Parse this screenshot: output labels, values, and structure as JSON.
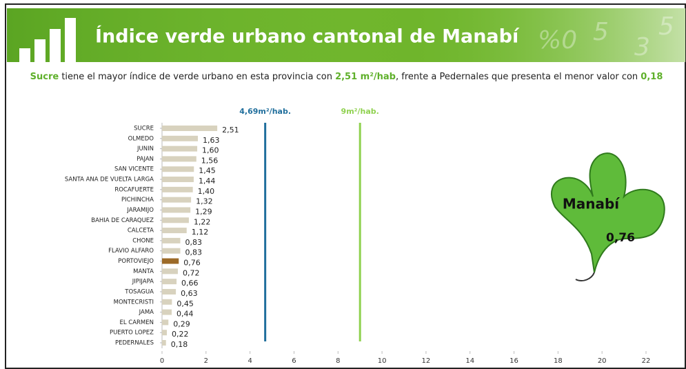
{
  "chart_data": {
    "type": "bar",
    "orientation": "horizontal",
    "title": "Índice verde urbano cantonal de Manabí",
    "subtitle": {
      "lead": "Sucre",
      "text1": " tiene el mayor índice de verde urbano en esta provincia con ",
      "highlight1": "2,51 m²/hab",
      "text2": ",  frente a Pedernales que presenta el menor valor con ",
      "highlight2": "0,18"
    },
    "categories": [
      "SUCRE",
      "OLMEDO",
      "JUNIN",
      "PAJAN",
      "SAN VICENTE",
      "SANTA ANA DE VUELTA LARGA",
      "ROCAFUERTE",
      "PICHINCHA",
      "JARAMIJO",
      "BAHIA DE CARAQUEZ",
      "CALCETA",
      "CHONE",
      "FLAVIO ALFARO",
      "PORTOVIEJO",
      "MANTA",
      "JIPIJAPA",
      "TOSAGUA",
      "MONTECRISTI",
      "JAMA",
      "EL CARMEN",
      "PUERTO LOPEZ",
      "PEDERNALES"
    ],
    "values": [
      2.51,
      1.63,
      1.6,
      1.56,
      1.45,
      1.44,
      1.4,
      1.32,
      1.29,
      1.22,
      1.12,
      0.83,
      0.83,
      0.76,
      0.72,
      0.66,
      0.63,
      0.45,
      0.44,
      0.29,
      0.22,
      0.18
    ],
    "value_labels": [
      "2,51",
      "1,63",
      "1,60",
      "1,56",
      "1,45",
      "1,44",
      "1,40",
      "1,32",
      "1,29",
      "1,22",
      "1,12",
      "0,83",
      "0,83",
      "0,76",
      "0,72",
      "0,66",
      "0,63",
      "0,45",
      "0,44",
      "0,29",
      "0,22",
      "0,18"
    ],
    "colors": [
      "#d8d2be",
      "#d8d2be",
      "#d8d2be",
      "#d8d2be",
      "#d8d2be",
      "#d8d2be",
      "#d8d2be",
      "#d8d2be",
      "#d8d2be",
      "#d8d2be",
      "#d8d2be",
      "#d8d2be",
      "#d8d2be",
      "#9c6a28",
      "#d8d2be",
      "#d8d2be",
      "#d8d2be",
      "#d8d2be",
      "#d8d2be",
      "#d8d2be",
      "#d8d2be",
      "#d8d2be"
    ],
    "xlim": [
      0,
      22
    ],
    "xticks": [
      0,
      2,
      4,
      6,
      8,
      10,
      12,
      14,
      16,
      18,
      20,
      22
    ],
    "reference_lines": [
      {
        "value": 4.69,
        "label": "4,69m²/hab.",
        "color": "#1f6e9c"
      },
      {
        "value": 9,
        "label": "9m²/hab.",
        "color": "#8fd14f"
      }
    ],
    "annotation": {
      "label": "Manabí",
      "value": 0.76,
      "value_label": "0,76"
    }
  }
}
